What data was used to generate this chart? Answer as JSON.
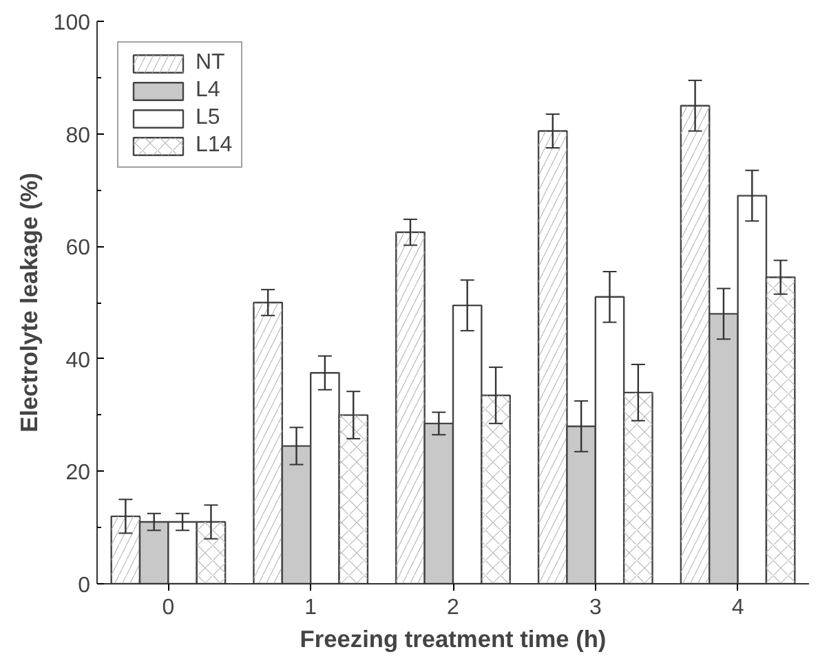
{
  "chart_data": {
    "type": "bar",
    "xlabel": "Freezing treatment time (h)",
    "ylabel": "Electrolyte leakage (%)",
    "categories": [
      "0",
      "1",
      "2",
      "3",
      "4"
    ],
    "series": [
      {
        "name": "NT",
        "color": "#ffffff",
        "values": [
          12,
          50,
          62.5,
          80.5,
          85
        ],
        "errors": [
          3,
          2.3,
          2.3,
          3,
          4.5
        ]
      },
      {
        "name": "L4",
        "color": "#c8c8c8",
        "values": [
          11,
          24.5,
          28.5,
          28,
          48
        ],
        "errors": [
          1.5,
          3.3,
          2,
          4.5,
          4.5
        ]
      },
      {
        "name": "L5",
        "color": "#ffffff",
        "values": [
          11,
          37.5,
          49.5,
          51,
          69
        ],
        "errors": [
          1.5,
          3,
          4.5,
          4.5,
          4.5
        ]
      },
      {
        "name": "L14",
        "color": "#ffffff",
        "values": [
          11,
          30,
          33.5,
          34,
          54.5
        ],
        "errors": [
          3,
          4.2,
          5,
          5,
          3
        ]
      }
    ],
    "ylim": [
      0,
      100
    ],
    "yticks": [
      0,
      20,
      40,
      60,
      80,
      100
    ],
    "grid": false,
    "legend": "top left"
  }
}
